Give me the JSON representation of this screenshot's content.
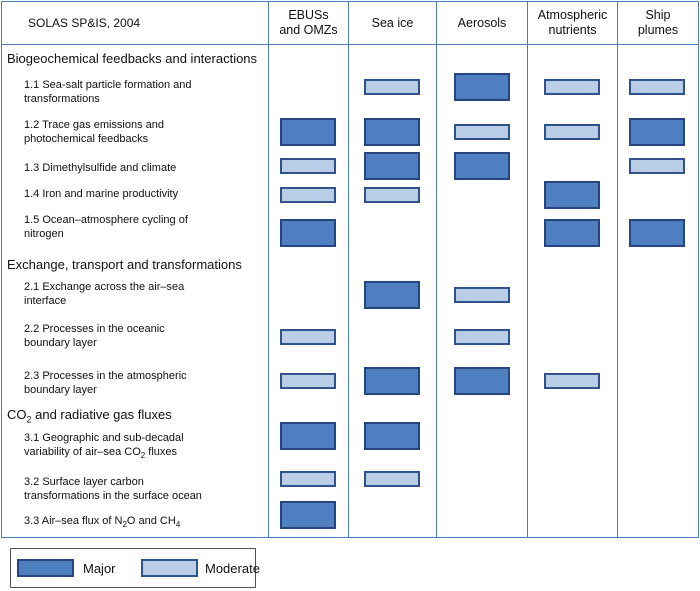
{
  "title": "SOLAS SP&IS, 2004",
  "columns": [
    {
      "line1": "EBUSs",
      "line2": "and OMZs"
    },
    {
      "line1": "Sea ice",
      "line2": ""
    },
    {
      "line1": "Aerosols",
      "line2": ""
    },
    {
      "line1": "Atmospheric",
      "line2": "nutrients"
    },
    {
      "line1": "Ship",
      "line2": "plumes"
    }
  ],
  "sections": [
    {
      "label": "Biogeochemical feedbacks and interactions",
      "sub": "",
      "post": ""
    },
    {
      "label": "Exchange, transport and transformations",
      "sub": "",
      "post": ""
    },
    {
      "label": "CO",
      "sub": "2",
      "post": " and radiative gas fluxes"
    }
  ],
  "rows": [
    {
      "l1": "1.1 Sea-salt particle formation and",
      "l2": "transformations",
      "l2sub": "",
      "l2post": "",
      "vals": [
        "",
        "moderate",
        "major",
        "moderate",
        "moderate"
      ]
    },
    {
      "l1": "1.2 Trace gas emissions and",
      "l2": "photochemical feedbacks",
      "l2sub": "",
      "l2post": "",
      "vals": [
        "major",
        "major",
        "moderate",
        "moderate",
        "major"
      ]
    },
    {
      "l1": "1.3 Dimethylsulfide and climate",
      "l2": "",
      "l2sub": "",
      "l2post": "",
      "vals": [
        "moderate",
        "major",
        "major",
        "",
        "moderate"
      ]
    },
    {
      "l1": "1.4 Iron and marine productivity",
      "l2": "",
      "l2sub": "",
      "l2post": "",
      "vals": [
        "moderate",
        "moderate",
        "",
        "major",
        ""
      ]
    },
    {
      "l1": "1.5 Ocean–atmosphere cycling of",
      "l2": "nitrogen",
      "l2sub": "",
      "l2post": "",
      "vals": [
        "major",
        "",
        "",
        "major",
        "major"
      ]
    },
    {
      "l1": "2.1 Exchange across the air–sea",
      "l2": "interface",
      "l2sub": "",
      "l2post": "",
      "vals": [
        "",
        "major",
        "moderate",
        "",
        ""
      ]
    },
    {
      "l1": "2.2 Processes in the oceanic",
      "l2": "boundary layer",
      "l2sub": "",
      "l2post": "",
      "vals": [
        "moderate",
        "",
        "moderate",
        "",
        ""
      ]
    },
    {
      "l1": "2.3 Processes in the atmospheric",
      "l2": "boundary layer",
      "l2sub": "",
      "l2post": "",
      "vals": [
        "moderate",
        "major",
        "major",
        "moderate",
        ""
      ]
    },
    {
      "l1": "3.1 Geographic and sub-decadal",
      "l2": "variability of air–sea CO",
      "l2sub": "2",
      "l2post": " fluxes",
      "vals": [
        "major",
        "major",
        "",
        "",
        ""
      ]
    },
    {
      "l1": "3.2 Surface layer carbon",
      "l2": "transformations in the surface ocean",
      "l2sub": "",
      "l2post": "",
      "vals": [
        "moderate",
        "moderate",
        "",
        "",
        ""
      ]
    },
    {
      "l1": "3.3 Air–sea flux of N",
      "l1sub": "2",
      "l1mid": "O and CH",
      "l1sub2": "4",
      "l2": "",
      "l2sub": "",
      "l2post": "",
      "vals": [
        "major",
        "",
        "",
        "",
        ""
      ]
    }
  ],
  "legend": {
    "major": "Major",
    "moderate": "Moderate"
  },
  "colors": {
    "major_fill": "#4f7fc1",
    "moderate_fill": "#b9cde6",
    "grid": "#4d7fbf"
  }
}
